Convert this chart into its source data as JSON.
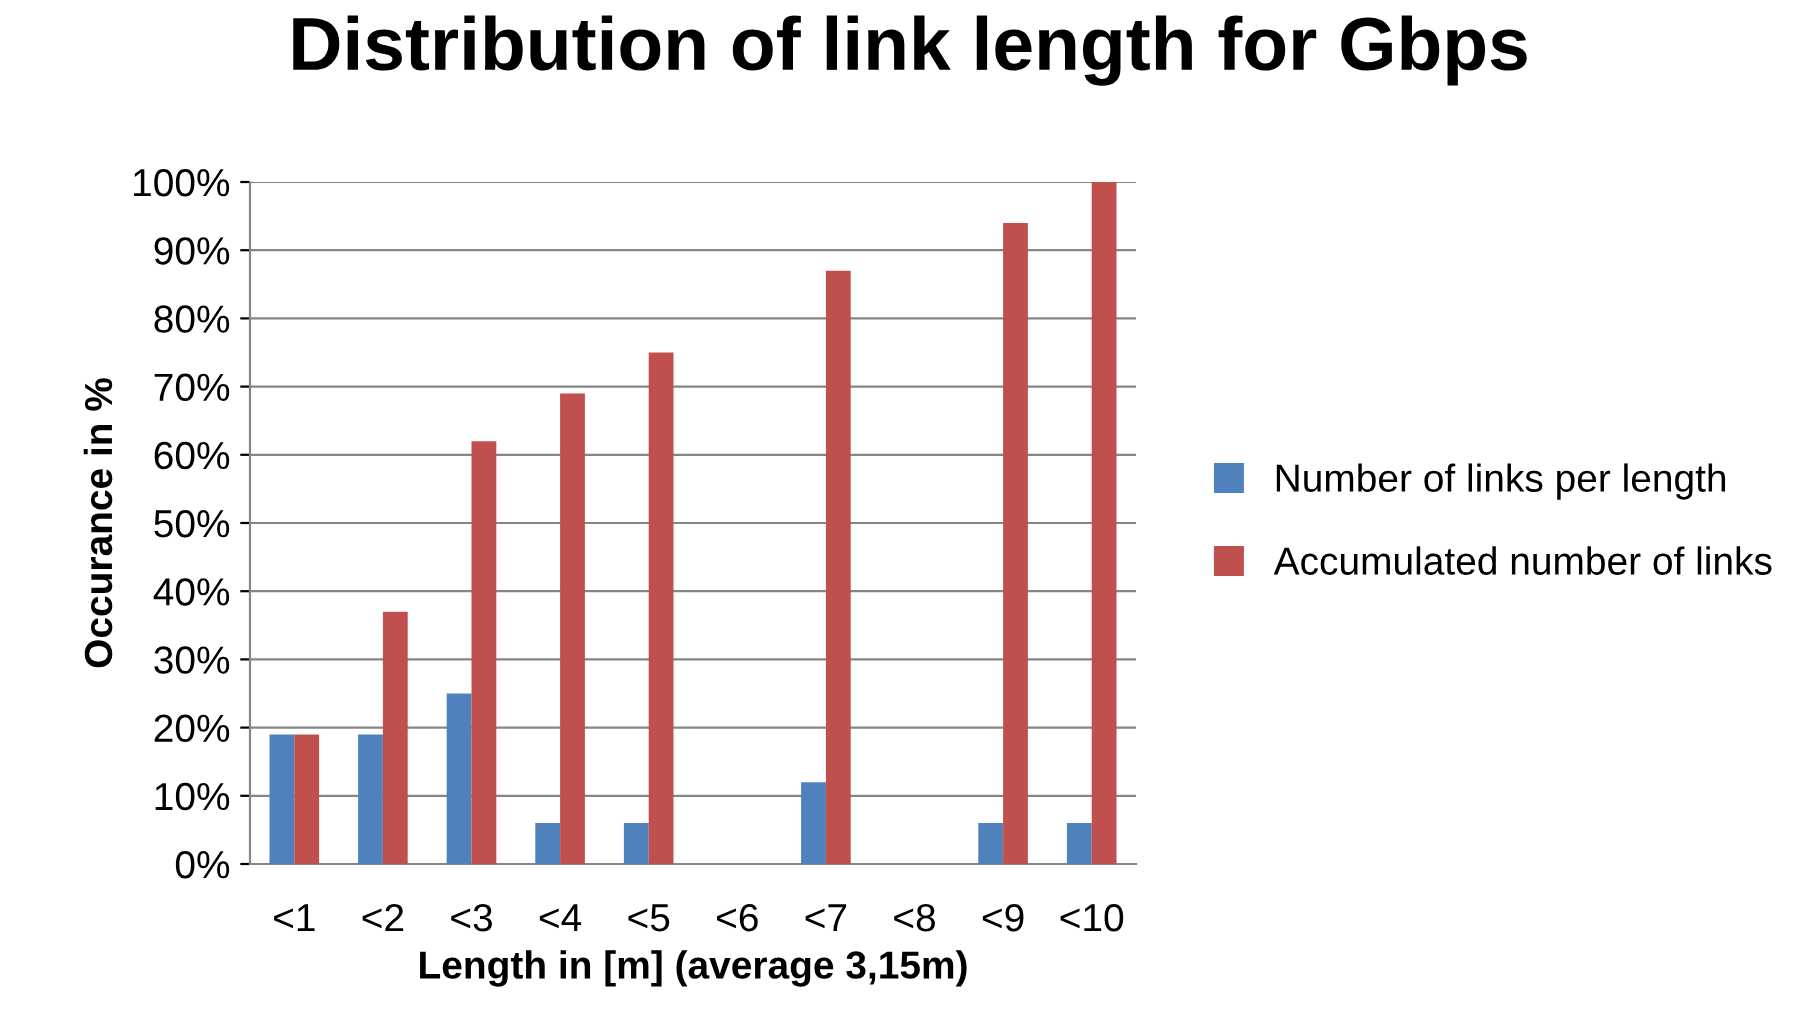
{
  "chart_data": {
    "type": "bar",
    "title": "Distribution of link length for Gbps",
    "xlabel": "Length in [m] (average 3,15m)",
    "ylabel": "Occurance in %",
    "categories": [
      "<1",
      "<2",
      "<3",
      "<4",
      "<5",
      "<6",
      "<7",
      "<8",
      "<9",
      "<10"
    ],
    "series": [
      {
        "name": "Number of links per length",
        "color": "#4f81bd",
        "values": [
          19,
          19,
          25,
          6,
          6,
          0,
          12,
          0,
          6,
          6
        ]
      },
      {
        "name": "Accumulated number of links",
        "color": "#c0504d",
        "values": [
          19,
          37,
          62,
          69,
          75,
          null,
          87,
          null,
          94,
          100
        ]
      }
    ],
    "ylim": [
      0,
      100
    ],
    "yticks": [
      {
        "value": 0,
        "label": "0%"
      },
      {
        "value": 10,
        "label": "10%"
      },
      {
        "value": 20,
        "label": "20%"
      },
      {
        "value": 30,
        "label": "30%"
      },
      {
        "value": 40,
        "label": "40%"
      },
      {
        "value": 50,
        "label": "50%"
      },
      {
        "value": 60,
        "label": "60%"
      },
      {
        "value": 70,
        "label": "70%"
      },
      {
        "value": 80,
        "label": "80%"
      },
      {
        "value": 90,
        "label": "90%"
      },
      {
        "value": 100,
        "label": "100%"
      }
    ],
    "grid": "y",
    "legend": "right"
  }
}
